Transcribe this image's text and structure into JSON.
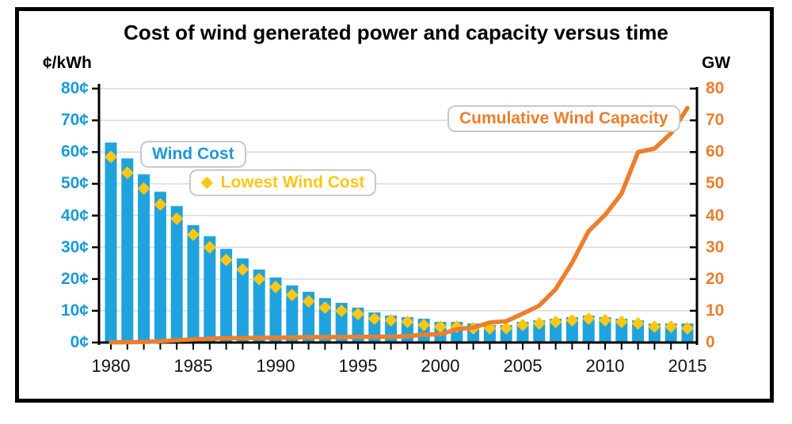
{
  "title": "Cost of wind generated power and capacity versus time",
  "axes": {
    "left_unit": "¢/kWh",
    "right_unit": "GW",
    "left_ticks": [
      "80¢",
      "70¢",
      "60¢",
      "50¢",
      "40¢",
      "30¢",
      "20¢",
      "10¢",
      "0¢"
    ],
    "right_ticks": [
      "80",
      "70",
      "60",
      "50",
      "40",
      "30",
      "20",
      "10",
      "0"
    ],
    "x_ticks": [
      "1980",
      "1985",
      "1990",
      "1995",
      "2000",
      "2005",
      "2010",
      "2015"
    ]
  },
  "legend": {
    "wind_cost": "Wind Cost",
    "lowest_wind_cost": "Lowest Wind Cost",
    "capacity": "Cumulative Wind Capacity",
    "diamond_icon": "◆"
  },
  "colors": {
    "blue": "#1FA3DE",
    "blue_text": "#1B9AD7",
    "yellow": "#FFC613",
    "orange": "#EC7E2C",
    "grid": "#D9D9D9",
    "axis": "#000000",
    "year_text": "#111111"
  },
  "chart_data": {
    "type": "combo",
    "title": "Cost of wind generated power and capacity versus time",
    "x": [
      1980,
      1981,
      1982,
      1983,
      1984,
      1985,
      1986,
      1987,
      1988,
      1989,
      1990,
      1991,
      1992,
      1993,
      1994,
      1995,
      1996,
      1997,
      1998,
      1999,
      2000,
      2001,
      2002,
      2003,
      2004,
      2005,
      2006,
      2007,
      2008,
      2009,
      2010,
      2011,
      2012,
      2013,
      2014,
      2015
    ],
    "x_label_interval": 5,
    "ylim_left": [
      0,
      80
    ],
    "ylim_right": [
      0,
      80
    ],
    "ylabel_left": "¢/kWh",
    "ylabel_right": "GW",
    "grid": true,
    "legend_position": "inside-top",
    "series": [
      {
        "name": "Wind Cost",
        "type": "bar",
        "axis": "left",
        "unit": "¢/kWh",
        "values": [
          63,
          58,
          53,
          47.5,
          43,
          37,
          33.5,
          29.5,
          26.5,
          23,
          20.5,
          18,
          16,
          14,
          12.5,
          11,
          9.5,
          8.5,
          8,
          7.5,
          6.5,
          6.5,
          6,
          5.5,
          5.5,
          6.5,
          7,
          7.5,
          8,
          8.5,
          8,
          7.5,
          7,
          6,
          6,
          6
        ]
      },
      {
        "name": "Lowest Wind Cost",
        "type": "scatter",
        "marker": "diamond",
        "axis": "left",
        "unit": "¢/kWh",
        "values": [
          58.5,
          53.5,
          48.5,
          43.5,
          39,
          34,
          30,
          26,
          23,
          20,
          17.5,
          15,
          13,
          11,
          10,
          9,
          7.5,
          7,
          6.5,
          5.5,
          5,
          5,
          4.5,
          4.5,
          4.5,
          5.5,
          6,
          6.5,
          7,
          7.5,
          7,
          6.5,
          6,
          5,
          5,
          4.5
        ]
      },
      {
        "name": "Cumulative Wind Capacity",
        "type": "line",
        "axis": "right",
        "unit": "GW",
        "values": [
          0.05,
          0.1,
          0.2,
          0.4,
          0.7,
          1.0,
          1.2,
          1.4,
          1.4,
          1.5,
          1.5,
          1.6,
          1.7,
          1.7,
          1.7,
          1.8,
          1.8,
          1.8,
          2.0,
          2.5,
          2.6,
          4.2,
          4.7,
          6.3,
          6.7,
          9.1,
          11.6,
          16.8,
          25.2,
          35.1,
          40.2,
          46.9,
          60.0,
          61.1,
          65.9,
          73.9
        ]
      }
    ]
  }
}
